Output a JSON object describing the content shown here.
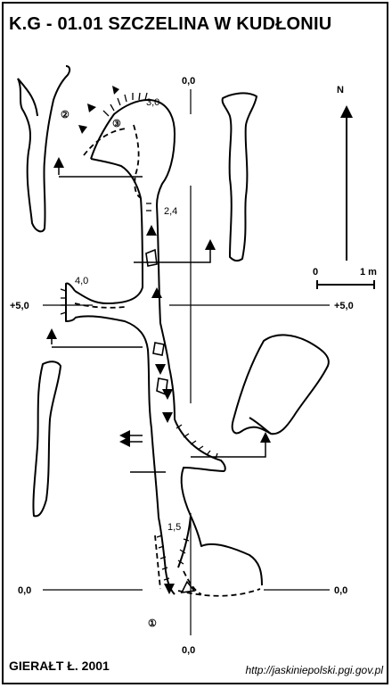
{
  "title": "K.G - 01.01  SZCZELINA W KUDŁONIU",
  "author": "GIERAŁT Ł. 2001",
  "source_url": "http://jaskiniepolski.pgi.gov.pl",
  "north_label": "N",
  "scale": {
    "start_label": "0",
    "end_label": "1 m"
  },
  "reference_levels": {
    "top": "0,0",
    "bottom": "0,0",
    "left_plus5": "+5,0",
    "right_plus5": "+5,0",
    "left_zero": "0,0",
    "right_zero": "0,0"
  },
  "depth_labels": [
    "3,0",
    "2,4",
    "4,0",
    "1,5"
  ],
  "entrance_markers": [
    "②",
    "③",
    "①"
  ],
  "colors": {
    "ink": "#000000",
    "background": "#ffffff"
  }
}
